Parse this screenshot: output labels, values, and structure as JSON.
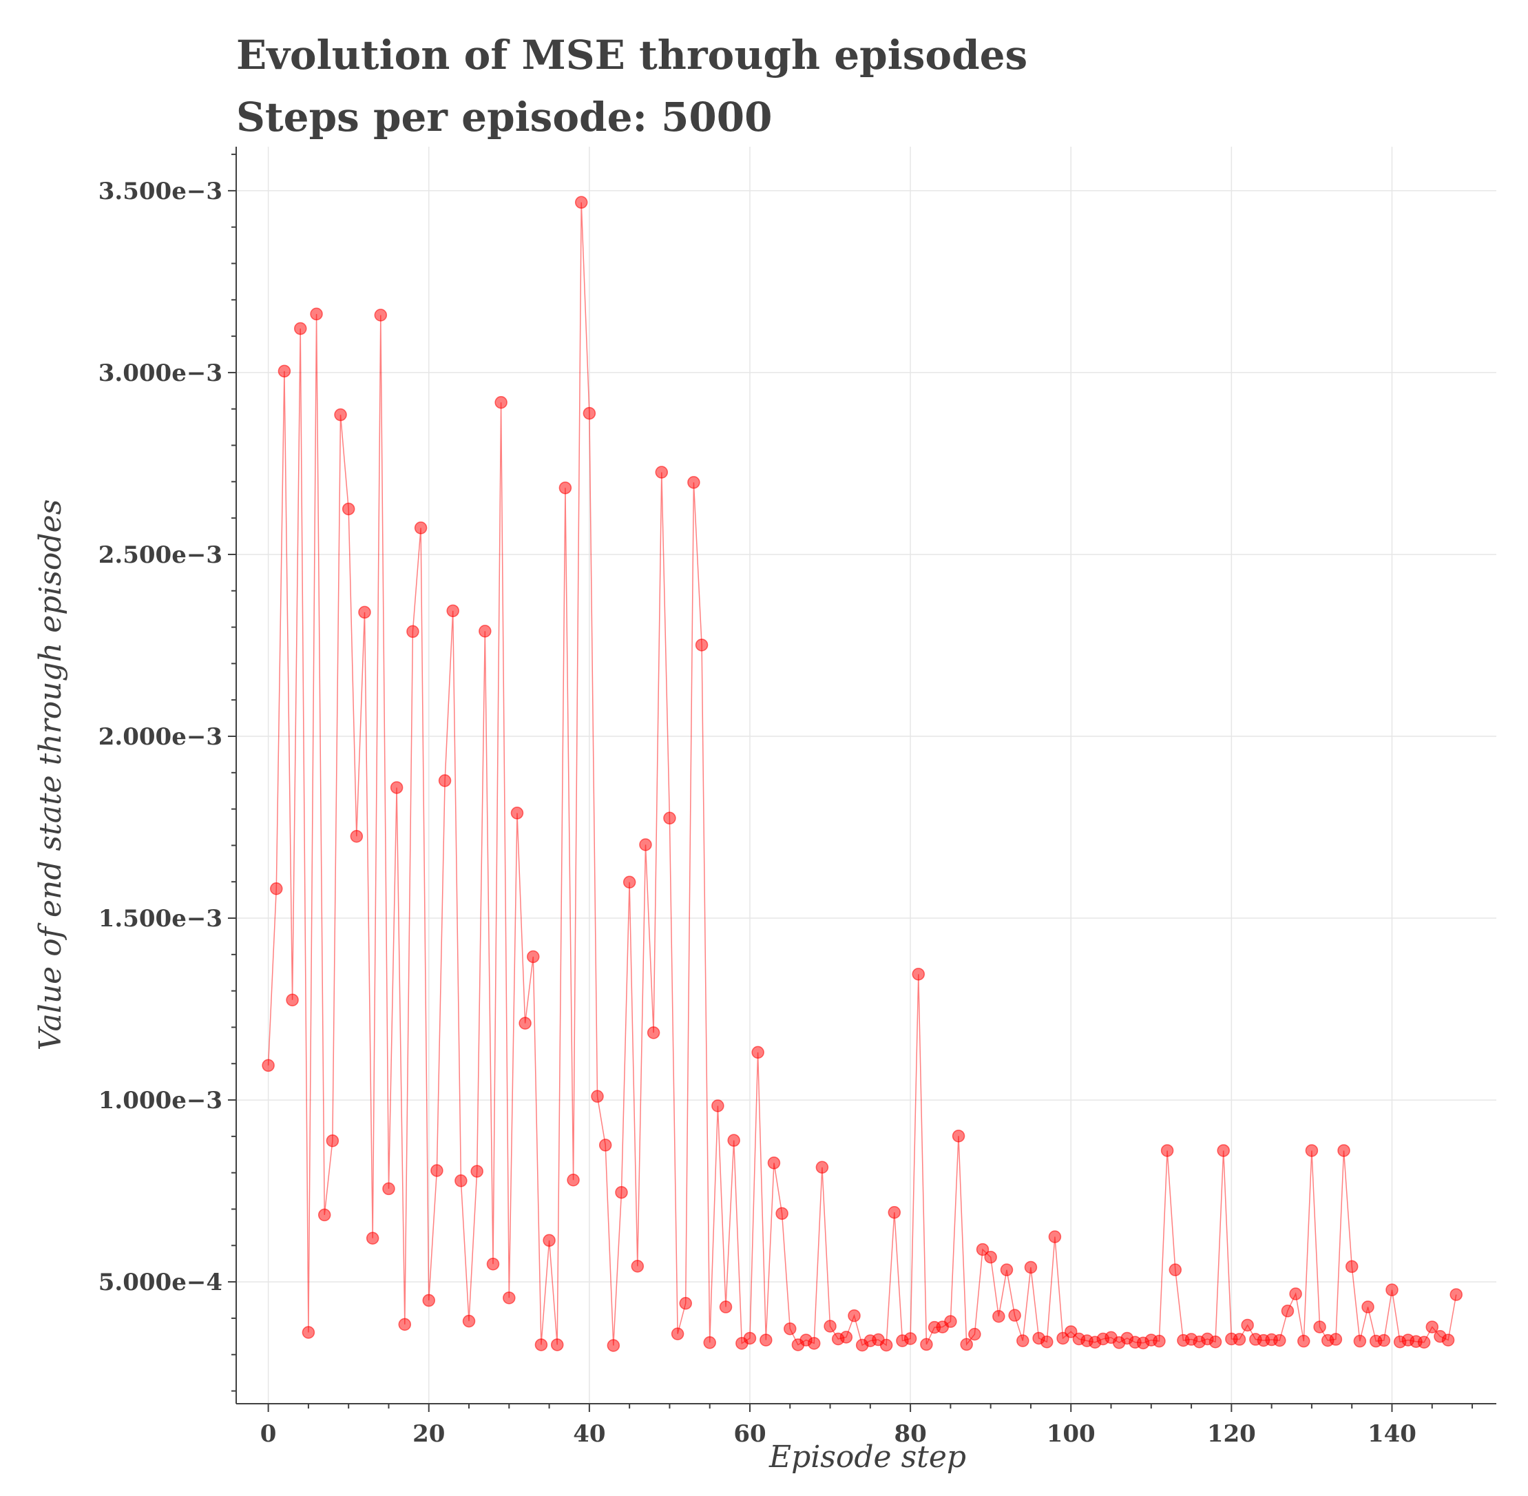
{
  "chart_data": {
    "type": "line",
    "title": "Evolution of MSE through episodes",
    "subtitle": "Steps per episode: 5000",
    "xlabel": "Episode step",
    "ylabel": "Value of end state through episodes",
    "xlim": [
      -4,
      153
    ],
    "ylim": [
      0.000165,
      0.003621
    ],
    "xticks": [
      0,
      20,
      40,
      60,
      80,
      100,
      120,
      140
    ],
    "xtick_labels": [
      "0",
      "20",
      "40",
      "60",
      "80",
      "100",
      "120",
      "140"
    ],
    "yticks": [
      0.0005,
      0.001,
      0.0015,
      0.002,
      0.0025,
      0.003,
      0.0035
    ],
    "ytick_labels": [
      "5.000e−4",
      "1.000e−3",
      "1.500e−3",
      "2.000e−3",
      "2.500e−3",
      "3.000e−3",
      "3.500e−3"
    ],
    "grid": true,
    "color": "#ff0000",
    "marker": "circle",
    "series": [
      {
        "x": [
          0,
          1,
          2,
          3,
          4,
          5,
          6,
          7,
          8,
          9,
          10,
          11,
          12,
          13,
          14,
          15,
          16,
          17,
          18,
          19,
          20,
          21,
          22,
          23,
          24,
          25,
          26,
          27,
          28,
          29,
          30,
          31,
          32,
          33,
          34,
          35,
          36,
          37,
          38,
          39,
          40,
          41,
          42,
          43,
          44,
          45,
          46,
          47,
          48,
          49,
          50,
          51,
          52,
          53,
          54,
          55,
          56,
          57,
          58,
          59,
          60,
          61,
          62,
          63,
          64,
          65,
          66,
          67,
          68,
          69,
          70,
          71,
          72,
          73,
          74,
          75,
          76,
          77,
          78,
          79,
          80,
          81,
          82,
          83,
          84,
          85,
          86,
          87,
          88,
          89,
          90,
          91,
          92,
          93,
          94,
          95,
          96,
          97,
          98,
          99,
          100,
          101,
          102,
          103,
          104,
          105,
          106,
          107,
          108,
          109,
          110,
          111,
          112,
          113,
          114,
          115,
          116,
          117,
          118,
          119,
          120,
          121,
          122,
          123,
          124,
          125,
          126,
          127,
          128,
          129,
          130,
          131,
          132,
          133,
          134,
          135,
          136,
          137,
          138,
          139,
          140,
          141,
          142,
          143,
          144,
          145,
          146,
          147,
          148
        ],
        "values": [
          0.001095,
          0.001581,
          0.003004,
          0.001275,
          0.003121,
          0.000361,
          0.003161,
          0.000684,
          0.000888,
          0.002884,
          0.002625,
          0.001725,
          0.002341,
          0.00062,
          0.003158,
          0.000756,
          0.001859,
          0.000383,
          0.002288,
          0.002573,
          0.000449,
          0.000806,
          0.001878,
          0.002345,
          0.000778,
          0.000392,
          0.000804,
          0.002289,
          0.000549,
          0.002918,
          0.000456,
          0.001789,
          0.001211,
          0.001394,
          0.000327,
          0.000614,
          0.000327,
          0.002683,
          0.00078,
          0.003468,
          0.002888,
          0.00101,
          0.000876,
          0.000325,
          0.000746,
          0.001599,
          0.000543,
          0.001702,
          0.001185,
          0.002726,
          0.001775,
          0.000357,
          0.000441,
          0.002698,
          0.002251,
          0.000333,
          0.000984,
          0.000431,
          0.000889,
          0.000331,
          0.000345,
          0.001131,
          0.00034,
          0.000827,
          0.000688,
          0.000371,
          0.000327,
          0.00034,
          0.000331,
          0.000815,
          0.000378,
          0.000343,
          0.000348,
          0.000407,
          0.000326,
          0.000338,
          0.000341,
          0.000326,
          0.000691,
          0.000338,
          0.000344,
          0.001346,
          0.000328,
          0.000375,
          0.000376,
          0.000391,
          0.000901,
          0.000328,
          0.000356,
          0.000589,
          0.000568,
          0.000405,
          0.000533,
          0.000408,
          0.000338,
          0.00054,
          0.000345,
          0.000335,
          0.000624,
          0.000345,
          0.000363,
          0.000343,
          0.000338,
          0.000334,
          0.000343,
          0.000347,
          0.000333,
          0.000345,
          0.000334,
          0.000332,
          0.00034,
          0.000337,
          0.000861,
          0.000533,
          0.000339,
          0.000342,
          0.000335,
          0.000343,
          0.000335,
          0.000861,
          0.000343,
          0.000342,
          0.000381,
          0.000342,
          0.000339,
          0.000341,
          0.000339,
          0.00042,
          0.000467,
          0.000337,
          0.000861,
          0.000376,
          0.000339,
          0.000342,
          0.000861,
          0.000542,
          0.000337,
          0.000431,
          0.000337,
          0.000339,
          0.000478,
          0.000335,
          0.00034,
          0.000336,
          0.000334,
          0.000376,
          0.00035,
          0.00034,
          0.000465
        ]
      }
    ]
  }
}
